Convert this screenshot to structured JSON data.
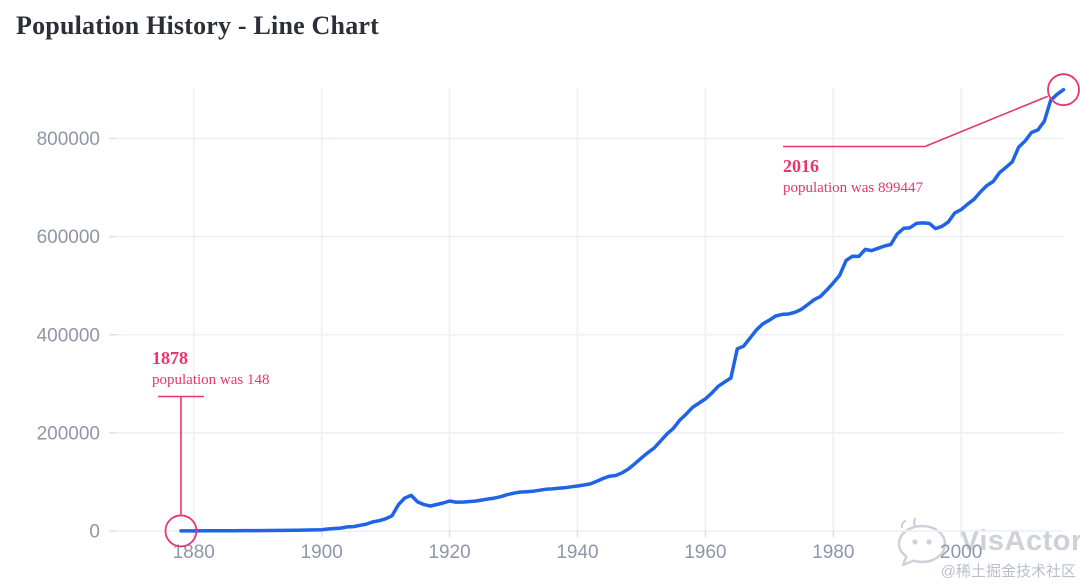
{
  "header": {
    "title": "Population History - Line Chart"
  },
  "colors": {
    "line": "#1F64E5",
    "annotation": "#E8356D",
    "grid": "#EDEFF4",
    "tick": "#DDE1E8",
    "axis_label": "#8E96A8",
    "title": "#2B2F38",
    "watermark": "#CDD1D9"
  },
  "chart_data": {
    "type": "line",
    "title": "Population History - Line Chart",
    "xlabel": "",
    "ylabel": "",
    "x_range": [
      1868,
      2016
    ],
    "y_range": [
      0,
      903000
    ],
    "x_ticks": [
      1880,
      1900,
      1920,
      1940,
      1960,
      1980,
      2000
    ],
    "y_ticks": [
      0,
      200000,
      400000,
      600000,
      800000
    ],
    "grid": true,
    "legend": "none",
    "series": [
      {
        "name": "population",
        "points": [
          [
            1878,
            148
          ],
          [
            1880,
            300
          ],
          [
            1882,
            450
          ],
          [
            1884,
            550
          ],
          [
            1886,
            650
          ],
          [
            1888,
            760
          ],
          [
            1890,
            900
          ],
          [
            1892,
            1100
          ],
          [
            1894,
            1300
          ],
          [
            1896,
            1500
          ],
          [
            1898,
            2000
          ],
          [
            1899,
            2212
          ],
          [
            1900,
            2626
          ],
          [
            1901,
            4000
          ],
          [
            1902,
            5000
          ],
          [
            1903,
            6000
          ],
          [
            1904,
            8350
          ],
          [
            1905,
            9000
          ],
          [
            1906,
            11534
          ],
          [
            1907,
            14000
          ],
          [
            1908,
            18500
          ],
          [
            1909,
            21000
          ],
          [
            1910,
            24900
          ],
          [
            1911,
            31064
          ],
          [
            1912,
            53611
          ],
          [
            1913,
            67243
          ],
          [
            1914,
            72516
          ],
          [
            1915,
            59339
          ],
          [
            1916,
            53846
          ],
          [
            1917,
            51000
          ],
          [
            1918,
            54000
          ],
          [
            1919,
            57000
          ],
          [
            1920,
            61045
          ],
          [
            1921,
            58821
          ],
          [
            1922,
            59000
          ],
          [
            1923,
            60000
          ],
          [
            1924,
            61000
          ],
          [
            1925,
            63000
          ],
          [
            1926,
            65163
          ],
          [
            1927,
            67000
          ],
          [
            1928,
            70000
          ],
          [
            1929,
            74000
          ],
          [
            1930,
            77000
          ],
          [
            1931,
            79197
          ],
          [
            1932,
            80000
          ],
          [
            1933,
            81000
          ],
          [
            1934,
            83000
          ],
          [
            1935,
            85000
          ],
          [
            1936,
            85774
          ],
          [
            1937,
            87000
          ],
          [
            1938,
            88000
          ],
          [
            1939,
            90000
          ],
          [
            1940,
            91700
          ],
          [
            1941,
            93817
          ],
          [
            1942,
            96000
          ],
          [
            1943,
            101000
          ],
          [
            1944,
            107000
          ],
          [
            1945,
            111745
          ],
          [
            1946,
            113116
          ],
          [
            1947,
            118541
          ],
          [
            1948,
            126609
          ],
          [
            1949,
            137469
          ],
          [
            1950,
            148861
          ],
          [
            1951,
            159631
          ],
          [
            1952,
            169196
          ],
          [
            1953,
            183411
          ],
          [
            1954,
            197836
          ],
          [
            1955,
            209353
          ],
          [
            1956,
            226002
          ],
          [
            1957,
            238353
          ],
          [
            1958,
            252131
          ],
          [
            1959,
            260733
          ],
          [
            1960,
            269314
          ],
          [
            1961,
            281027
          ],
          [
            1962,
            294967
          ],
          [
            1963,
            303756
          ],
          [
            1964,
            311804
          ],
          [
            1965,
            371265
          ],
          [
            1966,
            376925
          ],
          [
            1967,
            393593
          ],
          [
            1968,
            410105
          ],
          [
            1969,
            422418
          ],
          [
            1970,
            429750
          ],
          [
            1971,
            438152
          ],
          [
            1972,
            441530
          ],
          [
            1973,
            442365
          ],
          [
            1974,
            445691
          ],
          [
            1975,
            451635
          ],
          [
            1976,
            461361
          ],
          [
            1977,
            471474
          ],
          [
            1978,
            478066
          ],
          [
            1979,
            491359
          ],
          [
            1980,
            505773
          ],
          [
            1981,
            521205
          ],
          [
            1982,
            551314
          ],
          [
            1983,
            560085
          ],
          [
            1984,
            559664
          ],
          [
            1985,
            573982
          ],
          [
            1986,
            571506
          ],
          [
            1987,
            576249
          ],
          [
            1988,
            580872
          ],
          [
            1989,
            583872
          ],
          [
            1990,
            605538
          ],
          [
            1991,
            616741
          ],
          [
            1992,
            618195
          ],
          [
            1993,
            626999
          ],
          [
            1994,
            627877
          ],
          [
            1995,
            626999
          ],
          [
            1996,
            616306
          ],
          [
            1997,
            621000
          ],
          [
            1998,
            630000
          ],
          [
            1999,
            648284
          ],
          [
            2000,
            655000
          ],
          [
            2001,
            666104
          ],
          [
            2002,
            676000
          ],
          [
            2003,
            691000
          ],
          [
            2004,
            704000
          ],
          [
            2005,
            712391
          ],
          [
            2006,
            730372
          ],
          [
            2007,
            741000
          ],
          [
            2008,
            752412
          ],
          [
            2009,
            782439
          ],
          [
            2010,
            795000
          ],
          [
            2011,
            812201
          ],
          [
            2012,
            817498
          ],
          [
            2013,
            835000
          ],
          [
            2014,
            877926
          ],
          [
            2015,
            890000
          ],
          [
            2016,
            899447
          ]
        ]
      }
    ],
    "annotations": [
      {
        "year": 1878,
        "value": 148,
        "label": "1878",
        "text": "population was 148"
      },
      {
        "year": 2016,
        "value": 899447,
        "label": "2016",
        "text": "population was 899447"
      }
    ]
  },
  "watermark": {
    "brand": "VisActor",
    "credit": "@稀土掘金技术社区"
  }
}
